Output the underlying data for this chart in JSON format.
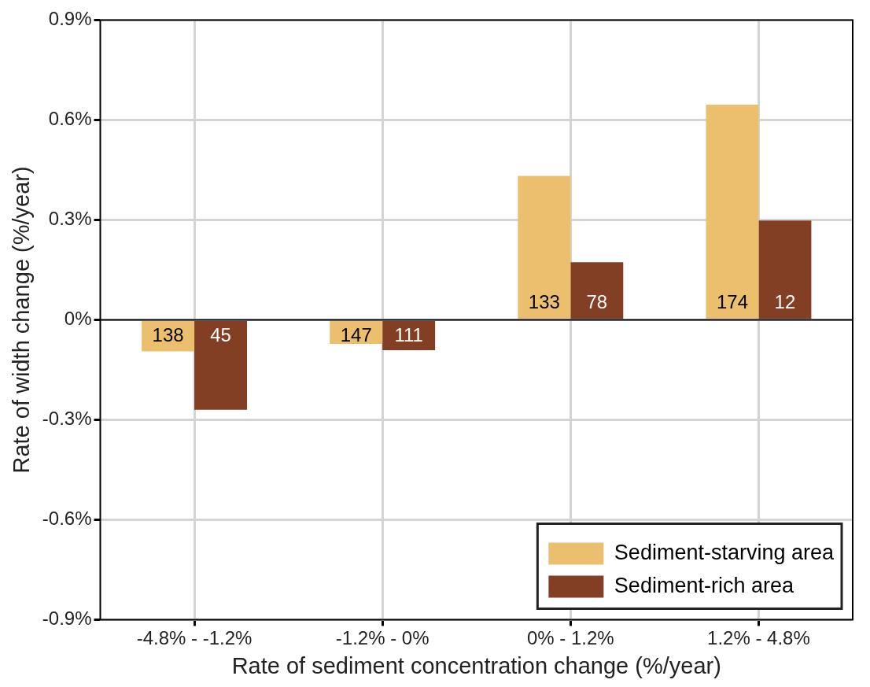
{
  "chart_data": {
    "type": "bar",
    "xlabel": "Rate of sediment concentration change (%/year)",
    "ylabel": "Rate of width change (%/year)",
    "categories": [
      "-4.8% - -1.2%",
      "-1.2% - 0%",
      "0% - 1.2%",
      "1.2% - 4.8%"
    ],
    "series": [
      {
        "name": "Sediment-starving area",
        "color": "#ecbf6e",
        "values": [
          -0.095,
          -0.072,
          0.432,
          0.646
        ]
      },
      {
        "name": "Sediment-rich area",
        "color": "#833f24",
        "values": [
          -0.27,
          -0.091,
          0.173,
          0.298
        ]
      }
    ],
    "annotations": [
      {
        "text": "138",
        "x": "-4.8% - -1.2%",
        "y": -0.05
      },
      {
        "text": "147",
        "x": "-1.2% - 0%",
        "y": -0.05
      },
      {
        "text": "133",
        "x": "0% - 1.2%",
        "y": 0.05
      },
      {
        "text": "174",
        "x": "1.2% - 4.8%",
        "y": 0.05
      },
      {
        "text": "45",
        "x": "-4.8% - -1.2%",
        "y": -0.05
      },
      {
        "text": "111",
        "x": "-1.2% - 0%",
        "y": -0.05
      },
      {
        "text": "78",
        "x": "0% - 1.2%",
        "y": 0.05
      },
      {
        "text": "12",
        "x": "1.2% - 4.8%",
        "y": 0.05
      }
    ],
    "ylim": [
      -0.9,
      0.9
    ],
    "yticks": [
      {
        "value": -0.9,
        "label": "-0.9%"
      },
      {
        "value": -0.6,
        "label": "-0.6%"
      },
      {
        "value": -0.3,
        "label": "-0.3%"
      },
      {
        "value": 0,
        "label": "0%"
      },
      {
        "value": 0.3,
        "label": "0.3%"
      },
      {
        "value": 0.6,
        "label": "0.6%"
      },
      {
        "value": 0.9,
        "label": "0.9%"
      }
    ],
    "grid": true,
    "legend": "bottom right"
  }
}
